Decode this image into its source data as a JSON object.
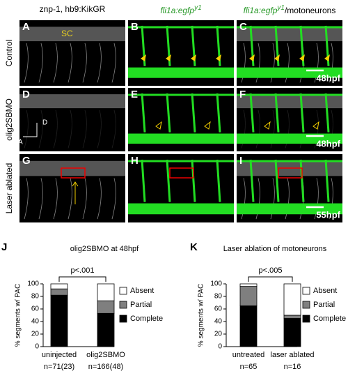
{
  "figure": {
    "headers": [
      {
        "text": "znp-1, hb9:KikGR"
      },
      {
        "text": "fli1a:egfp",
        "sup": "y1"
      },
      {
        "text": "fli1a:egfp",
        "sup": "y1",
        "suffix": "/motoneurons"
      }
    ],
    "row_labels": [
      "Control",
      "olig2SBMO",
      "Laser ablated"
    ],
    "panels": [
      {
        "letter": "A",
        "note": "SC"
      },
      {
        "letter": "B"
      },
      {
        "letter": "C",
        "stamp": "48hpf"
      },
      {
        "letter": "D",
        "axis": [
          "D",
          "A"
        ]
      },
      {
        "letter": "E"
      },
      {
        "letter": "F",
        "stamp": "48hpf"
      },
      {
        "letter": "G"
      },
      {
        "letter": "H"
      },
      {
        "letter": "I",
        "stamp": "55hpf"
      }
    ]
  },
  "chart_data": [
    {
      "type": "stacked_bar",
      "letter": "J",
      "title": "olig2SBMO at 48hpf",
      "ylabel": "% segments w/ PAC",
      "categories": [
        "uninjected",
        "olig2SBMO"
      ],
      "n_labels": [
        "n=71(23)",
        "n=166(48)"
      ],
      "pvalue": "p<.001",
      "ylim": [
        0,
        100
      ],
      "yticks": [
        0,
        20,
        40,
        60,
        80,
        100
      ],
      "series": [
        {
          "name": "Complete",
          "color": "#000000",
          "values": [
            82,
            53
          ]
        },
        {
          "name": "Partial",
          "color": "#7f7f7f",
          "values": [
            10,
            20
          ]
        },
        {
          "name": "Absent",
          "color": "#ffffff",
          "values": [
            8,
            27
          ]
        }
      ]
    },
    {
      "type": "stacked_bar",
      "letter": "K",
      "title": "Laser ablation of motoneurons",
      "ylabel": "% segments w/ PAC",
      "categories": [
        "untreated",
        "laser ablated"
      ],
      "n_labels": [
        "n=65",
        "n=16"
      ],
      "pvalue": "p<.005",
      "ylim": [
        0,
        100
      ],
      "yticks": [
        0,
        20,
        40,
        60,
        80,
        100
      ],
      "series": [
        {
          "name": "Complete",
          "color": "#000000",
          "values": [
            65,
            45
          ]
        },
        {
          "name": "Partial",
          "color": "#7f7f7f",
          "values": [
            31,
            5
          ]
        },
        {
          "name": "Absent",
          "color": "#ffffff",
          "values": [
            4,
            50
          ]
        }
      ]
    }
  ]
}
